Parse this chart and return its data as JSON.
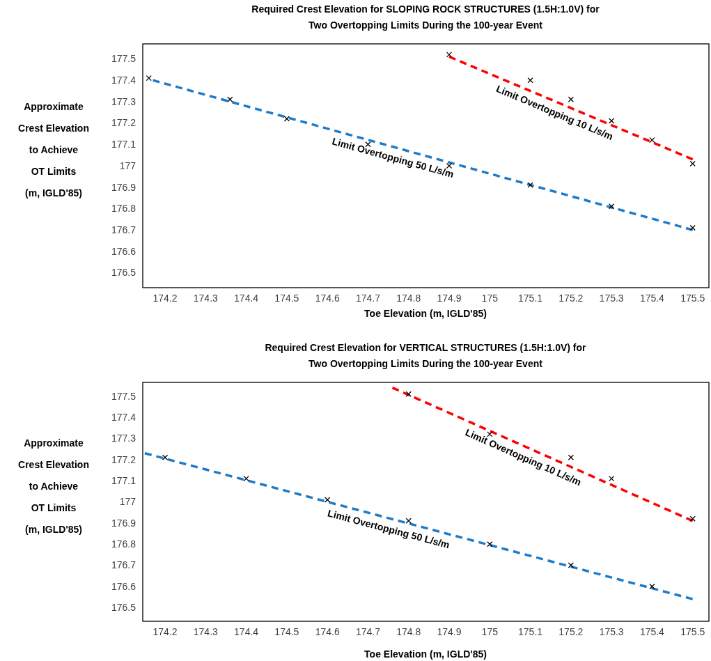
{
  "chart_data": [
    {
      "type": "scatter",
      "title": "Required Crest Elevation for SLOPING ROCK STRUCTURES (1.5H:1.0V) for\nTwo Overtopping Limits During the 100-year Event",
      "xlabel": "Toe Elevation (m, IGLD'85)",
      "ylabel": "Approximate\nCrest Elevation\nto Achieve\nOT Limits\n(m, IGLD'85)",
      "xlim": [
        174.145,
        175.54
      ],
      "ylim": [
        176.43,
        177.57
      ],
      "xticks": [
        174.2,
        174.3,
        174.4,
        174.5,
        174.6,
        174.7,
        174.8,
        174.9,
        175,
        175.1,
        175.2,
        175.3,
        175.4,
        175.5
      ],
      "yticks": [
        176.5,
        176.6,
        176.7,
        176.8,
        176.9,
        177,
        177.1,
        177.2,
        177.3,
        177.4,
        177.5
      ],
      "grid": false,
      "marker": "cross",
      "series": [
        {
          "color": "#000000",
          "x": [
            174.16,
            174.36,
            174.5,
            174.7,
            174.9,
            175.1,
            175.3,
            175.5
          ],
          "values": [
            177.41,
            177.31,
            177.22,
            177.1,
            177.0,
            176.91,
            176.81,
            176.71
          ]
        },
        {
          "color": "#000000",
          "x": [
            174.9,
            175.1,
            175.2,
            175.3,
            175.4,
            175.5
          ],
          "values": [
            177.52,
            177.4,
            177.31,
            177.21,
            177.12,
            177.01
          ]
        },
        {
          "type": "line",
          "name": "Limit Overtopping 50 L/s/m",
          "color": "#1f7bc8",
          "line_style": "dashed",
          "marker": "none",
          "x": [
            174.17,
            175.5
          ],
          "values": [
            177.4,
            176.7
          ]
        },
        {
          "type": "line",
          "name": "Limit Overtopping 10 L/s/m",
          "color": "#ff0000",
          "line_style": "dashed",
          "marker": "none",
          "x": [
            174.9,
            175.5
          ],
          "values": [
            177.51,
            177.03
          ]
        }
      ]
    },
    {
      "type": "scatter",
      "title": "Required Crest Elevation for VERTICAL STRUCTURES (1.5H:1.0V) for\nTwo Overtopping Limits During the 100-year Event",
      "xlabel": "Toe Elevation (m, IGLD'85)",
      "ylabel": "Approximate\nCrest Elevation\nto Achieve\nOT Limits\n(m, IGLD'85)",
      "xlim": [
        174.145,
        175.54
      ],
      "ylim": [
        176.435,
        177.565
      ],
      "xticks": [
        174.2,
        174.3,
        174.4,
        174.5,
        174.6,
        174.7,
        174.8,
        174.9,
        175,
        175.1,
        175.2,
        175.3,
        175.4,
        175.5
      ],
      "yticks": [
        176.5,
        176.6,
        176.7,
        176.8,
        176.9,
        177,
        177.1,
        177.2,
        177.3,
        177.4,
        177.5
      ],
      "grid": false,
      "marker": "cross",
      "series": [
        {
          "color": "#000000",
          "x": [
            174.2,
            174.4,
            174.6,
            174.8,
            175,
            175.2,
            175.4
          ],
          "values": [
            177.21,
            177.11,
            177.01,
            176.91,
            176.8,
            176.7,
            176.6
          ]
        },
        {
          "color": "#000000",
          "x": [
            174.8,
            175,
            175.2,
            175.3,
            175.5
          ],
          "values": [
            177.51,
            177.32,
            177.21,
            177.11,
            176.92
          ]
        },
        {
          "type": "line",
          "name": "Limit Overtopping 50 L/s/m",
          "color": "#1f7bc8",
          "line_style": "dashed",
          "marker": "none",
          "x": [
            174.15,
            175.5
          ],
          "values": [
            177.23,
            176.54
          ]
        },
        {
          "type": "line",
          "name": "Limit Overtopping 10 L/s/m",
          "color": "#ff0000",
          "line_style": "dashed",
          "marker": "none",
          "x": [
            174.76,
            175.5
          ],
          "values": [
            177.54,
            176.91
          ]
        }
      ]
    }
  ]
}
